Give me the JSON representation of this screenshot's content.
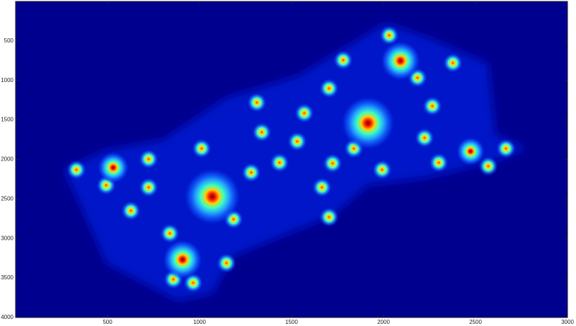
{
  "chart_data": {
    "type": "image",
    "xlim": [
      0,
      3000
    ],
    "ylim": [
      4000,
      0
    ],
    "xticks": [
      500,
      1000,
      1500,
      2000,
      2500,
      3000
    ],
    "yticks": [
      500,
      1000,
      1500,
      2000,
      2500,
      3000,
      3500,
      4000
    ]
  }
}
